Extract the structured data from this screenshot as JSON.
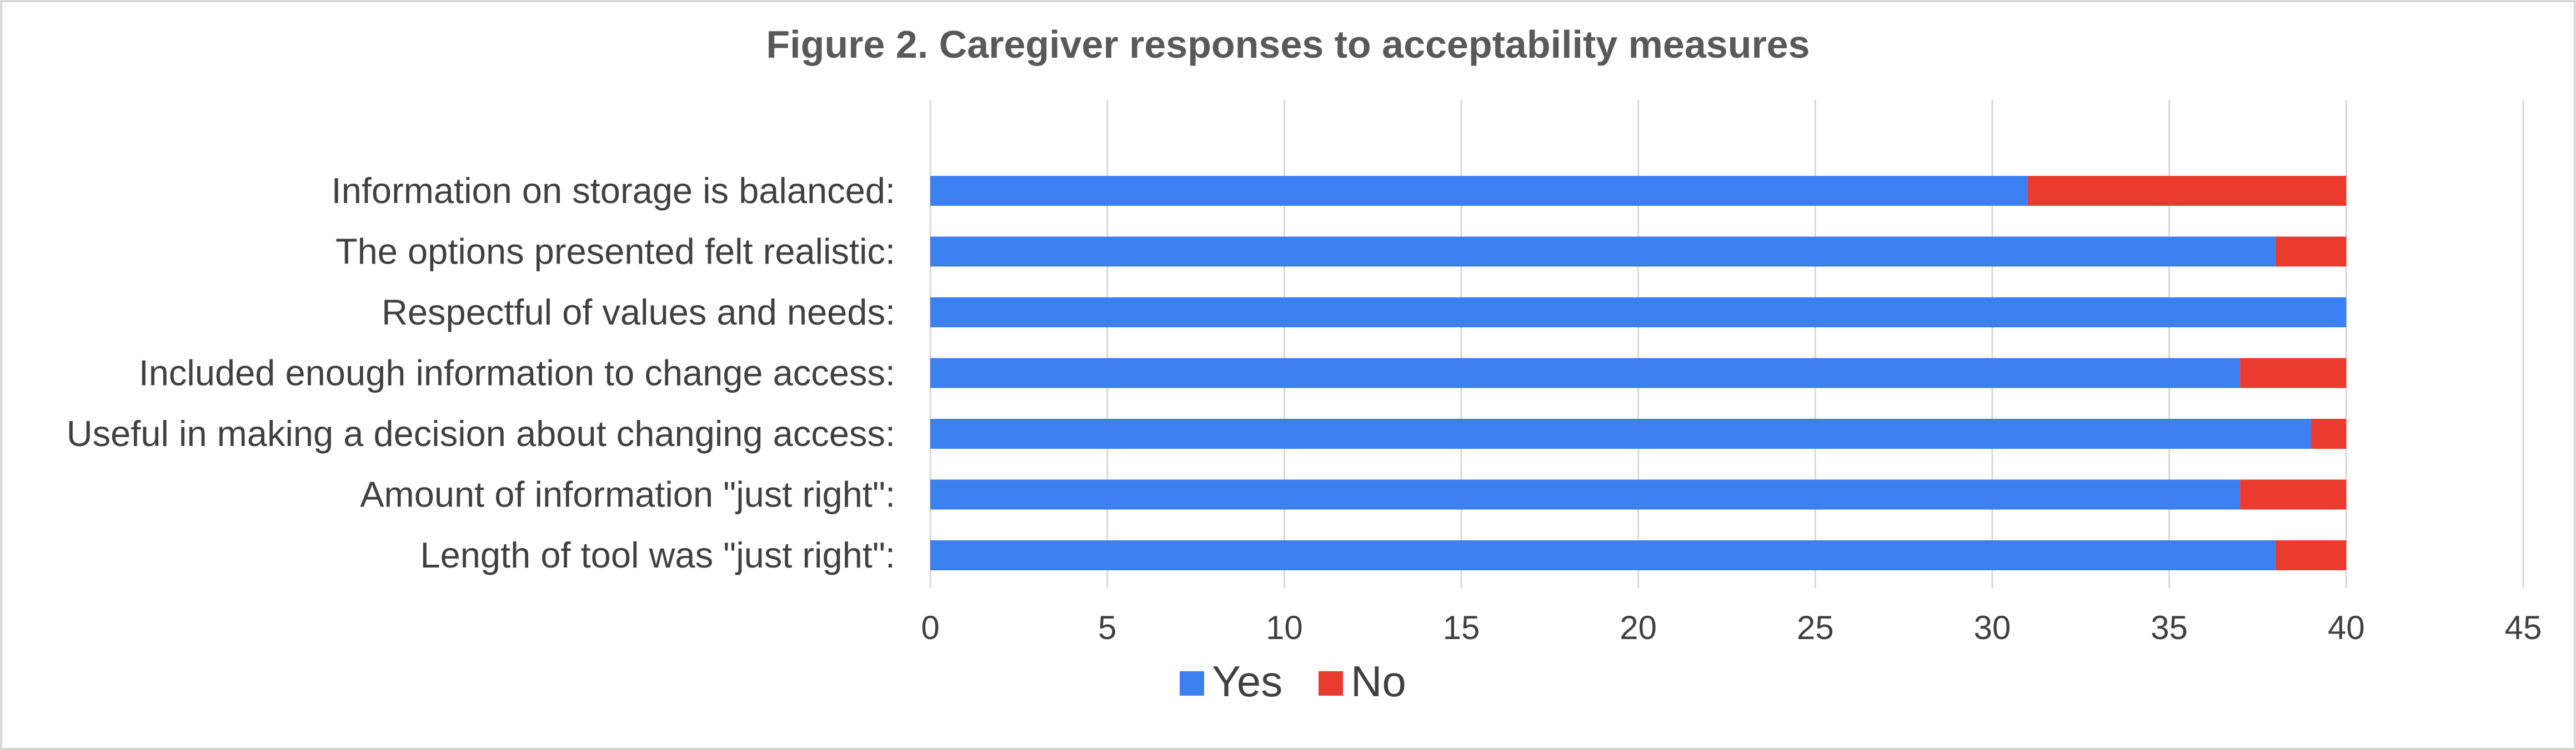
{
  "chart_data": {
    "type": "bar",
    "orientation": "horizontal",
    "stacked": true,
    "title": "Figure 2. Caregiver responses to acceptability measures",
    "categories": [
      "Information on storage is balanced:",
      "The options presented felt realistic:",
      "Respectful of values and needs:",
      "Included enough information to change access:",
      "Useful in making a decision about changing access:",
      "Amount of information \"just right\":",
      "Length of tool was \"just right\":"
    ],
    "series": [
      {
        "name": "Yes",
        "color": "#3c7ff0",
        "values": [
          31,
          38,
          40,
          37,
          39,
          37,
          38
        ]
      },
      {
        "name": "No",
        "color": "#ea3b2e",
        "values": [
          9,
          2,
          0,
          3,
          1,
          3,
          2
        ]
      }
    ],
    "xlim": [
      0,
      45
    ],
    "xticks": [
      0,
      5,
      10,
      15,
      20,
      25,
      30,
      35,
      40,
      45
    ],
    "xlabel": "",
    "ylabel": "",
    "grid": true,
    "legend_position": "bottom"
  }
}
